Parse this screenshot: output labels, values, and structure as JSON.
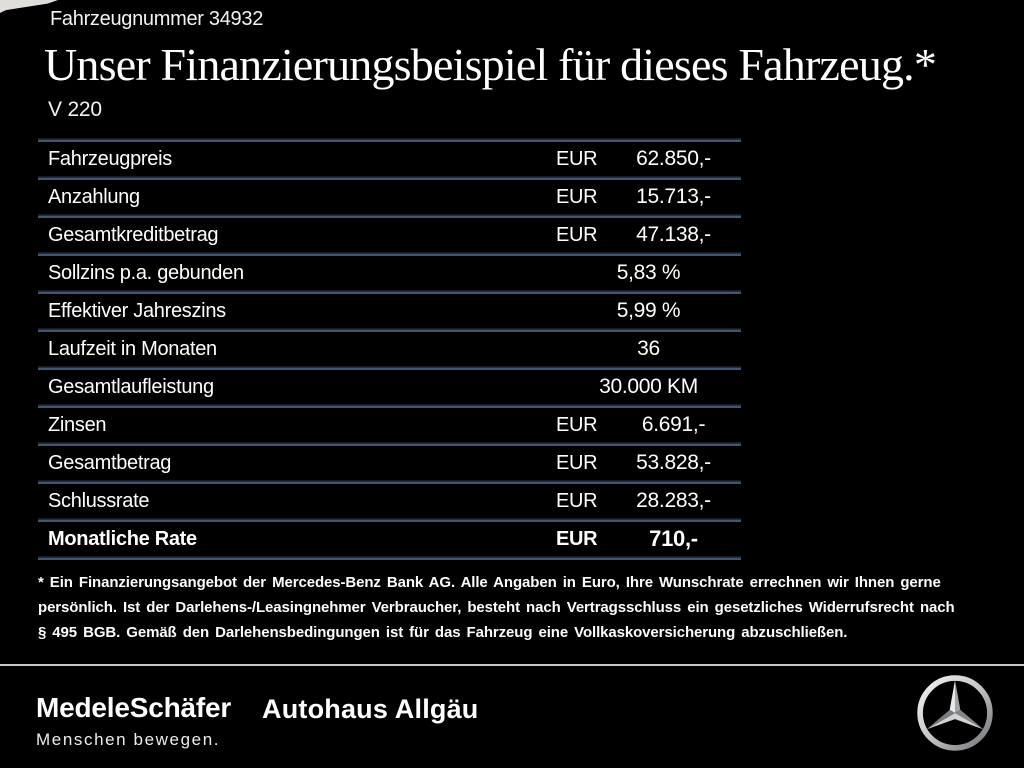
{
  "page": {
    "vehicle_number": "Fahrzeugnummer 34932",
    "title": "Unser Finanzierungsbeispiel für dieses Fahrzeug.*",
    "model": "V 220"
  },
  "table": {
    "rows": [
      {
        "label": "Fahrzeugpreis",
        "currency": "EUR",
        "value": "62.850,-",
        "bold": false
      },
      {
        "label": "Anzahlung",
        "currency": "EUR",
        "value": "15.713,-",
        "bold": false
      },
      {
        "label": "Gesamtkreditbetrag",
        "currency": "EUR",
        "value": "47.138,-",
        "bold": false
      },
      {
        "label": "Sollzins p.a. gebunden",
        "currency": "",
        "value": "5,83 %",
        "bold": false
      },
      {
        "label": "Effektiver Jahreszins",
        "currency": "",
        "value": "5,99 %",
        "bold": false
      },
      {
        "label": "Laufzeit in Monaten",
        "currency": "",
        "value": "36",
        "bold": false
      },
      {
        "label": "Gesamtlaufleistung",
        "currency": "",
        "value": "30.000 KM",
        "bold": false
      },
      {
        "label": "Zinsen",
        "currency": "EUR",
        "value": "6.691,-",
        "bold": false
      },
      {
        "label": "Gesamtbetrag",
        "currency": "EUR",
        "value": "53.828,-",
        "bold": false
      },
      {
        "label": "Schlussrate",
        "currency": "EUR",
        "value": "28.283,-",
        "bold": false
      },
      {
        "label": "Monatliche Rate",
        "currency": "EUR",
        "value": "710,-",
        "bold": true
      }
    ]
  },
  "footnote": {
    "lines": [
      "* Ein Finanzierungsangebot der Mercedes-Benz Bank AG. Alle Angaben in Euro, Ihre Wunschrate errechnen wir Ihnen gerne",
      "persönlich. Ist der Darlehens-/Leasingnehmer Verbraucher, besteht nach Vertragsschluss ein gesetzliches Widerrufsrecht nach",
      "§ 495 BGB. Gemäß den Darlehensbedingungen ist für das Fahrzeug eine Vollkaskoversicherung abzuschließen."
    ]
  },
  "footer": {
    "dealer_logo": "MedeleSchäfer",
    "dealer_tagline": "Menschen bewegen.",
    "dealer_name_2": "Autohaus Allgäu",
    "brand_icon": "mercedes-star-icon"
  },
  "colors": {
    "background": "#000000",
    "text": "#ffffff",
    "table_separator": "#4a6387",
    "footer_separator": "#c9c9c9"
  }
}
